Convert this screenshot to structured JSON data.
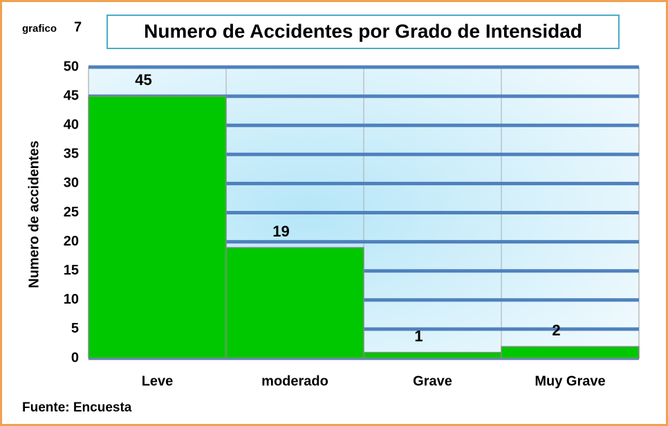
{
  "chart_data": {
    "type": "bar",
    "figure_label": "grafico",
    "figure_number": "7",
    "title": "Numero de Accidentes por Grado de Intensidad",
    "y_label": "Numero de accidentes",
    "categories": [
      "Leve",
      "moderado",
      "Grave",
      "Muy Grave"
    ],
    "values": [
      45,
      19,
      1,
      2
    ],
    "color": "#00c800",
    "ylim": [
      0,
      50
    ],
    "yticks": [
      0,
      5,
      10,
      15,
      20,
      25,
      30,
      35,
      40,
      45,
      50
    ],
    "grid": true,
    "source": "Fuente: Encuesta"
  }
}
